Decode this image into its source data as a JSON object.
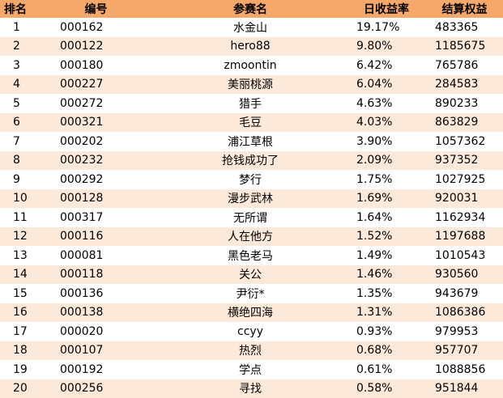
{
  "table": {
    "headers": {
      "rank": "排名",
      "id": "编号",
      "name": "参赛名",
      "rate": "日收益率",
      "equity": "结算权益"
    },
    "rows": [
      {
        "rank": "1",
        "id": "000162",
        "name": "水金山",
        "rate": "19.17%",
        "equity": "483365"
      },
      {
        "rank": "2",
        "id": "000122",
        "name": "hero88",
        "rate": "9.80%",
        "equity": "1185675"
      },
      {
        "rank": "3",
        "id": "000180",
        "name": "zmoontin",
        "rate": "6.42%",
        "equity": "765786"
      },
      {
        "rank": "4",
        "id": "000227",
        "name": "美丽桃源",
        "rate": "6.04%",
        "equity": "284583"
      },
      {
        "rank": "5",
        "id": "000272",
        "name": "猎手",
        "rate": "4.63%",
        "equity": "890233"
      },
      {
        "rank": "6",
        "id": "000321",
        "name": "毛豆",
        "rate": "4.03%",
        "equity": "863829"
      },
      {
        "rank": "7",
        "id": "000202",
        "name": "浦江草根",
        "rate": "3.90%",
        "equity": "1057362"
      },
      {
        "rank": "8",
        "id": "000232",
        "name": "抢钱成功了",
        "rate": "2.09%",
        "equity": "937352"
      },
      {
        "rank": "9",
        "id": "000292",
        "name": "梦行",
        "rate": "1.75%",
        "equity": "1027925"
      },
      {
        "rank": "10",
        "id": "000128",
        "name": "漫步武林",
        "rate": "1.69%",
        "equity": "920031"
      },
      {
        "rank": "11",
        "id": "000317",
        "name": "无所谓",
        "rate": "1.64%",
        "equity": "1162934"
      },
      {
        "rank": "12",
        "id": "000116",
        "name": "人在他方",
        "rate": "1.52%",
        "equity": "1197688"
      },
      {
        "rank": "13",
        "id": "000081",
        "name": "黑色老马",
        "rate": "1.49%",
        "equity": "1010543"
      },
      {
        "rank": "14",
        "id": "000118",
        "name": "关公",
        "rate": "1.46%",
        "equity": "930560"
      },
      {
        "rank": "15",
        "id": "000136",
        "name": "尹衍*",
        "rate": "1.35%",
        "equity": "943679"
      },
      {
        "rank": "16",
        "id": "000138",
        "name": "横绝四海",
        "rate": "1.31%",
        "equity": "1086386"
      },
      {
        "rank": "17",
        "id": "000020",
        "name": "ccyy",
        "rate": "0.93%",
        "equity": "979953"
      },
      {
        "rank": "18",
        "id": "000107",
        "name": "热烈",
        "rate": "0.68%",
        "equity": "957707"
      },
      {
        "rank": "19",
        "id": "000192",
        "name": "学点",
        "rate": "0.61%",
        "equity": "1088856"
      },
      {
        "rank": "20",
        "id": "000256",
        "name": "寻找",
        "rate": "0.58%",
        "equity": "951844"
      }
    ]
  },
  "colors": {
    "header_bg": "#f6a86a",
    "stripe_bg": "#fde9d9",
    "row_bg": "#ffffff"
  }
}
